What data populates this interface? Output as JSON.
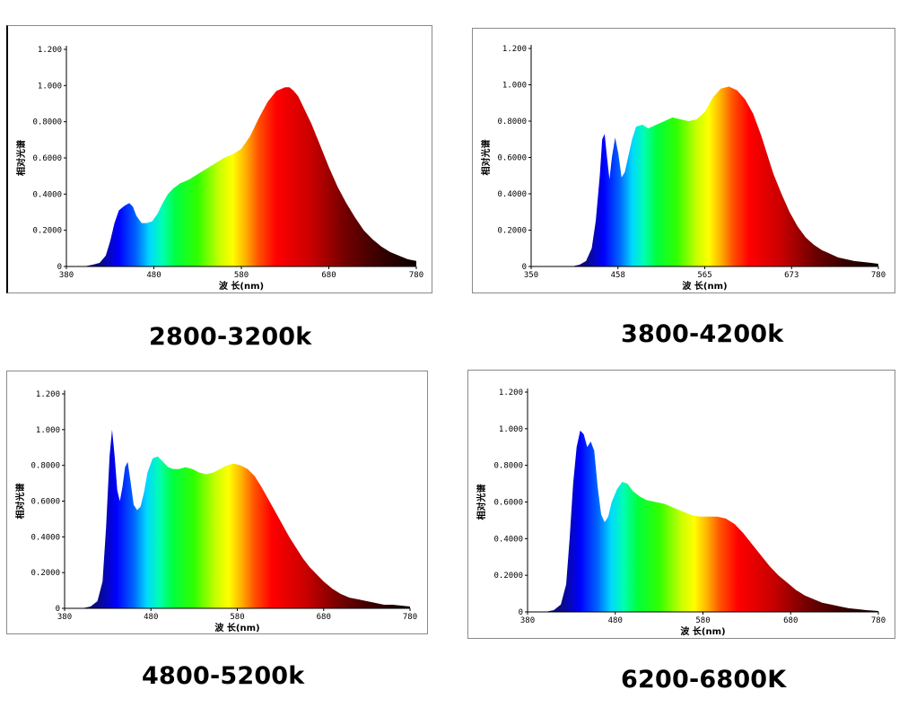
{
  "chart_data": [
    {
      "type": "area",
      "caption": "2800-3200k",
      "xlabel": "波 长(nm)",
      "ylabel": "相对光谱",
      "xlim": [
        380,
        780
      ],
      "ylim": [
        0,
        1.2
      ],
      "xticks": [
        "380",
        "480",
        "580",
        "680",
        "780"
      ],
      "yticks": [
        "0",
        "0.2000",
        "0.4000",
        "0.6000",
        "0.8000",
        "1.000",
        "1.200"
      ],
      "x": [
        380,
        400,
        410,
        418,
        425,
        430,
        435,
        440,
        445,
        448,
        452,
        456,
        460,
        466,
        472,
        478,
        484,
        490,
        496,
        502,
        510,
        520,
        530,
        540,
        550,
        560,
        570,
        580,
        590,
        600,
        610,
        620,
        630,
        635,
        640,
        645,
        650,
        660,
        670,
        680,
        690,
        700,
        710,
        720,
        730,
        740,
        750,
        760,
        770,
        780
      ],
      "values": [
        0,
        0,
        0.01,
        0.02,
        0.06,
        0.14,
        0.24,
        0.31,
        0.33,
        0.34,
        0.35,
        0.33,
        0.28,
        0.24,
        0.24,
        0.25,
        0.29,
        0.35,
        0.4,
        0.43,
        0.46,
        0.48,
        0.51,
        0.54,
        0.57,
        0.6,
        0.62,
        0.65,
        0.72,
        0.82,
        0.91,
        0.97,
        0.99,
        0.99,
        0.97,
        0.94,
        0.89,
        0.79,
        0.67,
        0.55,
        0.44,
        0.35,
        0.27,
        0.2,
        0.15,
        0.11,
        0.08,
        0.06,
        0.04,
        0.03
      ],
      "grid": false
    },
    {
      "type": "area",
      "caption": "3800-4200k",
      "xlabel": "波 长(nm)",
      "ylabel": "相对光谱",
      "xlim": [
        350,
        780
      ],
      "ylim": [
        0,
        1.2
      ],
      "xticks": [
        "350",
        "458",
        "565",
        "673",
        "780"
      ],
      "yticks": [
        "0",
        "0.2000",
        "0.4000",
        "0.6000",
        "0.8000",
        "1.000",
        "1.200"
      ],
      "x": [
        350,
        400,
        410,
        418,
        425,
        430,
        435,
        438,
        441,
        444,
        447,
        450,
        454,
        458,
        462,
        466,
        470,
        475,
        480,
        488,
        495,
        505,
        515,
        525,
        535,
        545,
        555,
        565,
        575,
        585,
        595,
        605,
        615,
        625,
        630,
        635,
        640,
        645,
        650,
        660,
        670,
        680,
        690,
        700,
        710,
        720,
        730,
        740,
        750,
        760,
        770,
        780
      ],
      "values": [
        0,
        0,
        0.01,
        0.03,
        0.1,
        0.25,
        0.5,
        0.7,
        0.73,
        0.6,
        0.48,
        0.6,
        0.71,
        0.62,
        0.49,
        0.52,
        0.6,
        0.7,
        0.77,
        0.78,
        0.76,
        0.78,
        0.8,
        0.82,
        0.81,
        0.8,
        0.81,
        0.85,
        0.93,
        0.98,
        0.99,
        0.97,
        0.92,
        0.84,
        0.78,
        0.72,
        0.65,
        0.58,
        0.51,
        0.4,
        0.3,
        0.22,
        0.16,
        0.12,
        0.09,
        0.07,
        0.05,
        0.04,
        0.03,
        0.025,
        0.02,
        0.015
      ],
      "grid": false
    },
    {
      "type": "area",
      "caption": "4800-5200k",
      "xlabel": "波 长(nm)",
      "ylabel": "相对光谱",
      "xlim": [
        380,
        780
      ],
      "ylim": [
        0,
        1.2
      ],
      "xticks": [
        "380",
        "480",
        "580",
        "680",
        "780"
      ],
      "yticks": [
        "0",
        "0.2000",
        "0.4000",
        "0.6000",
        "0.8000",
        "1.000",
        "1.200"
      ],
      "x": [
        380,
        400,
        410,
        418,
        424,
        428,
        432,
        435,
        438,
        441,
        444,
        447,
        450,
        453,
        456,
        460,
        464,
        468,
        472,
        476,
        482,
        488,
        494,
        500,
        506,
        512,
        520,
        528,
        536,
        544,
        552,
        560,
        568,
        576,
        584,
        592,
        600,
        608,
        616,
        624,
        632,
        640,
        648,
        656,
        664,
        672,
        680,
        690,
        700,
        710,
        720,
        730,
        740,
        750,
        760,
        770,
        780
      ],
      "values": [
        0,
        0,
        0.01,
        0.04,
        0.15,
        0.45,
        0.85,
        1.0,
        0.85,
        0.66,
        0.6,
        0.68,
        0.79,
        0.82,
        0.72,
        0.58,
        0.55,
        0.57,
        0.65,
        0.76,
        0.84,
        0.85,
        0.82,
        0.79,
        0.78,
        0.78,
        0.79,
        0.78,
        0.76,
        0.75,
        0.76,
        0.78,
        0.8,
        0.81,
        0.8,
        0.78,
        0.74,
        0.68,
        0.61,
        0.54,
        0.47,
        0.4,
        0.34,
        0.28,
        0.23,
        0.19,
        0.15,
        0.11,
        0.08,
        0.06,
        0.05,
        0.04,
        0.03,
        0.02,
        0.02,
        0.015,
        0.01
      ],
      "grid": false
    },
    {
      "type": "area",
      "caption": "6200-6800K",
      "xlabel": "波 长(nm)",
      "ylabel": "相对光谱",
      "xlim": [
        380,
        780
      ],
      "ylim": [
        0,
        1.2
      ],
      "xticks": [
        "380",
        "480",
        "580",
        "680",
        "780"
      ],
      "yticks": [
        "0",
        "0.2000",
        "0.4000",
        "0.6000",
        "0.8000",
        "1.000",
        "1.200"
      ],
      "x": [
        380,
        400,
        410,
        418,
        424,
        428,
        432,
        436,
        440,
        444,
        448,
        452,
        456,
        460,
        464,
        468,
        472,
        476,
        482,
        488,
        494,
        500,
        508,
        516,
        526,
        536,
        546,
        556,
        566,
        576,
        586,
        596,
        606,
        616,
        626,
        636,
        646,
        656,
        666,
        676,
        686,
        696,
        706,
        716,
        726,
        736,
        746,
        756,
        766,
        780
      ],
      "values": [
        0,
        0,
        0.01,
        0.04,
        0.15,
        0.4,
        0.7,
        0.9,
        0.99,
        0.97,
        0.9,
        0.93,
        0.88,
        0.68,
        0.53,
        0.49,
        0.52,
        0.6,
        0.67,
        0.71,
        0.7,
        0.66,
        0.63,
        0.61,
        0.6,
        0.59,
        0.57,
        0.55,
        0.53,
        0.52,
        0.52,
        0.52,
        0.51,
        0.48,
        0.43,
        0.37,
        0.31,
        0.25,
        0.2,
        0.16,
        0.12,
        0.09,
        0.07,
        0.05,
        0.04,
        0.03,
        0.02,
        0.015,
        0.01,
        0.005
      ],
      "grid": false
    }
  ]
}
